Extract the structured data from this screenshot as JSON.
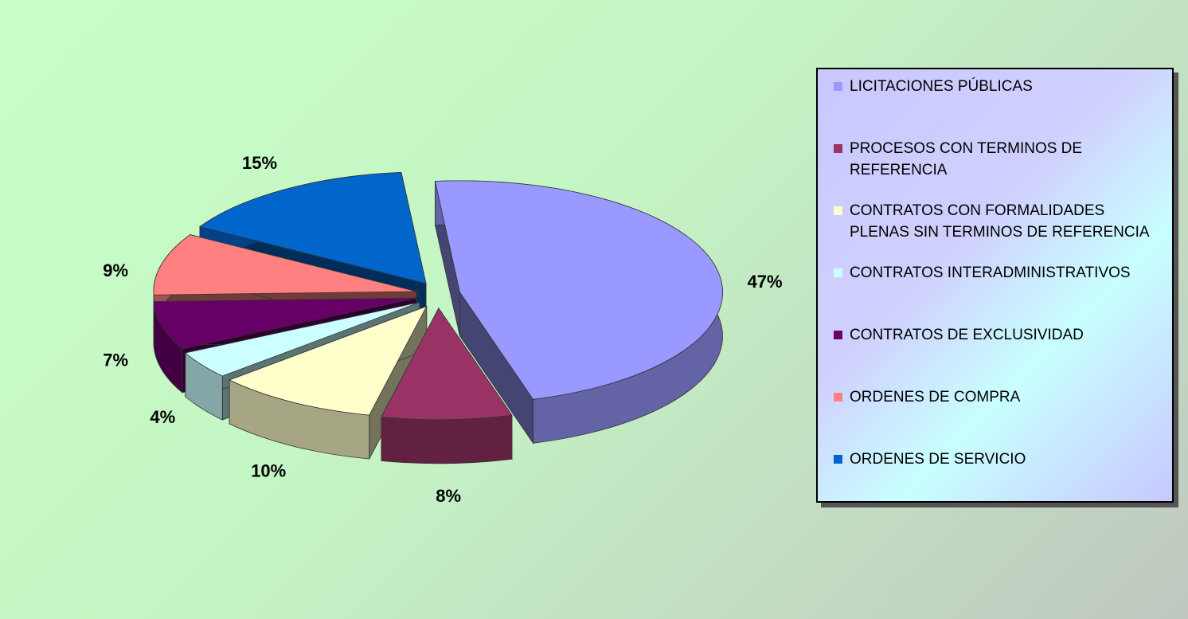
{
  "chart_data": {
    "type": "pie",
    "categories": [
      "LICITACIONES PÚBLICAS",
      "PROCESOS CON TERMINOS DE REFERENCIA",
      "CONTRATOS CON FORMALIDADES PLENAS SIN TERMINOS DE REFERENCIA",
      "CONTRATOS INTERADMINISTRATIVOS",
      "CONTRATOS  DE EXCLUSIVIDAD",
      "ORDENES DE  COMPRA",
      "ORDENES DE  SERVICIO"
    ],
    "values": [
      47,
      8,
      10,
      4,
      7,
      9,
      15
    ],
    "value_labels": [
      "47%",
      "8%",
      "10%",
      "4%",
      "7%",
      "9%",
      "15%"
    ],
    "colors": [
      "#9999ff",
      "#993366",
      "#ffffcc",
      "#ccffff",
      "#660066",
      "#ff8080",
      "#0066cc"
    ],
    "legend": "right"
  }
}
